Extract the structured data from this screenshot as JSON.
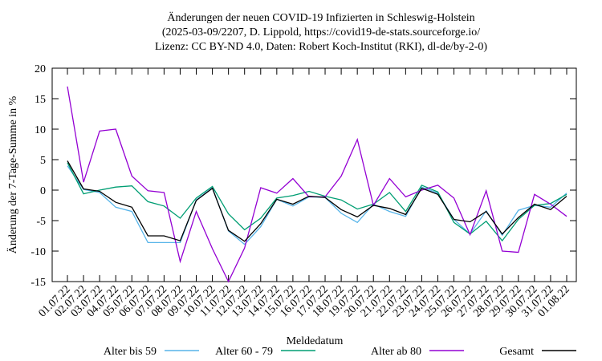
{
  "chart_data": {
    "type": "line",
    "title": [
      "Änderungen der neuen COVID-19 Infizierten in Schleswig-Holstein",
      "(2025-03-09/2207, D. Lippold, https://covid19-de-stats.sourceforge.io/",
      "Lizenz: CC BY-ND 4.0, Daten: Robert Koch-Institut (RKI), dl-de/by-2-0)"
    ],
    "x_label": "Meldedatum",
    "y_label": "Änderung der 7-Tage-Summe in %",
    "categories": [
      "01.07.22",
      "02.07.22",
      "03.07.22",
      "04.07.22",
      "05.07.22",
      "06.07.22",
      "07.07.22",
      "08.07.22",
      "09.07.22",
      "10.07.22",
      "11.07.22",
      "12.07.22",
      "13.07.22",
      "14.07.22",
      "15.07.22",
      "16.07.22",
      "17.07.22",
      "18.07.22",
      "19.07.22",
      "20.07.22",
      "21.07.22",
      "22.07.22",
      "23.07.22",
      "24.07.22",
      "25.07.22",
      "26.07.22",
      "27.07.22",
      "28.07.22",
      "29.07.22",
      "30.07.22",
      "31.07.22",
      "01.08.22"
    ],
    "series": [
      {
        "name": "Alter bis 59",
        "color": "#56b4e9",
        "values": [
          4.0,
          0.1,
          -0.4,
          -2.8,
          -3.5,
          -8.6,
          -8.6,
          -8.6,
          -1.6,
          0.4,
          -6.7,
          -8.9,
          -6,
          -1.5,
          -2.6,
          -1.1,
          -1.2,
          -3.8,
          -5.3,
          -2.3,
          -3.5,
          -4.3,
          0.5,
          -0.5,
          -4.8,
          -7.2,
          -3.4,
          -7.4,
          -3.3,
          -2.5,
          -2.8,
          -0.5
        ]
      },
      {
        "name": "Alter 60 - 79",
        "color": "#009e73",
        "values": [
          4.5,
          -0.6,
          0,
          0.5,
          0.7,
          -1.9,
          -2.6,
          -4.6,
          -1.3,
          0.6,
          -3.9,
          -6.5,
          -4.6,
          -1.3,
          -0.9,
          -0.2,
          -1,
          -1.6,
          -3.1,
          -2.3,
          -0.4,
          -3.5,
          0.8,
          -0.3,
          -5.3,
          -7.2,
          -5.1,
          -8.3,
          -4.8,
          -2.5,
          -2.2,
          -0.7
        ]
      },
      {
        "name": "Alter ab 80",
        "color": "#9400d3",
        "values": [
          17,
          1.3,
          9.7,
          10,
          2.3,
          -0.1,
          -0.4,
          -11.7,
          -3.5,
          -9.6,
          -15,
          -9.5,
          0.4,
          -0.5,
          1.9,
          -1.1,
          -1.1,
          2.3,
          8.3,
          -2.5,
          1.9,
          -1.1,
          0,
          0.8,
          -1.3,
          -7.3,
          -0.1,
          -10,
          -10.2,
          -0.7,
          -2.3,
          -4.3
        ]
      },
      {
        "name": "Gesamt",
        "color": "#000000",
        "values": [
          4.8,
          0.2,
          -0.2,
          -2,
          -2.8,
          -7.5,
          -7.5,
          -8.3,
          -1.7,
          0.3,
          -6.6,
          -8.4,
          -5.5,
          -1.5,
          -2.3,
          -1,
          -1.2,
          -3.2,
          -4.4,
          -2.5,
          -3,
          -4,
          0.3,
          -0.7,
          -4.8,
          -5.2,
          -3.5,
          -7.2,
          -4.5,
          -2.3,
          -3.2,
          -1
        ]
      }
    ],
    "ylim": [
      -15,
      20
    ],
    "yticks": [
      -15,
      -10,
      -5,
      0,
      5,
      10,
      15,
      20
    ],
    "grid": false,
    "legend": "bottom"
  }
}
